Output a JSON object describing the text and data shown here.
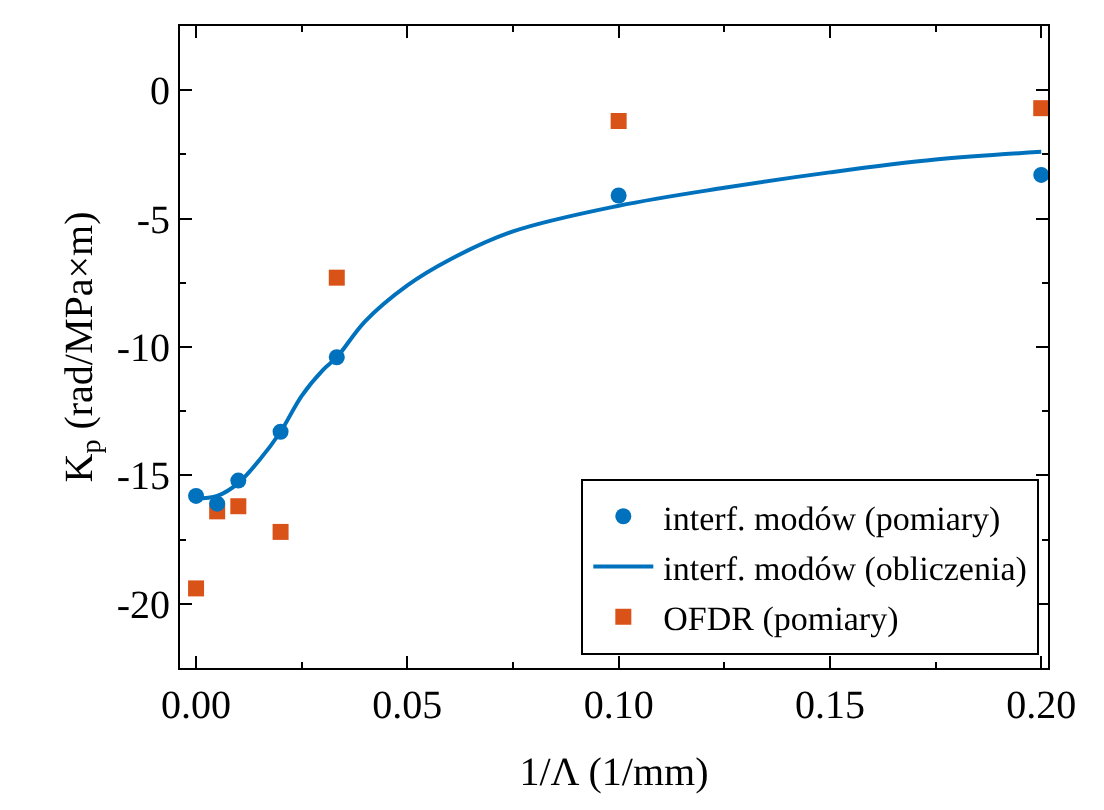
{
  "chart_data": {
    "type": "scatter",
    "xlabel": "1/Λ (1/mm)",
    "ylabel": "K$_{p}$ (rad/MPa×m)",
    "xlim": [
      -0.0038,
      0.2016
    ],
    "ylim": [
      -22.5,
      2.5
    ],
    "xticks": [
      {
        "value": 0,
        "label": "0.00"
      },
      {
        "value": 0.05,
        "label": "0.05"
      },
      {
        "value": 0.1,
        "label": "0.10"
      },
      {
        "value": 0.15,
        "label": "0.15"
      },
      {
        "value": 0.2,
        "label": "0.20"
      }
    ],
    "yticks": [
      -20,
      -15,
      -10,
      -5,
      0
    ],
    "legend": "bottom right",
    "series": [
      {
        "name": "interf. modów (pomiary)",
        "marker": "circle",
        "color": "#0072bd",
        "x": [
          0,
          0.005,
          0.01,
          0.02,
          0.0333,
          0.1,
          0.2
        ],
        "values": [
          -15.8,
          -16.1,
          -15.2,
          -13.3,
          -10.4,
          -4.1,
          -3.3
        ]
      },
      {
        "name": "interf. modów (obliczenia)",
        "type": "line",
        "line_style": "solid",
        "color": "#0072bd",
        "x": [
          0,
          0.005,
          0.01,
          0.015,
          0.02,
          0.025,
          0.03,
          0.0333,
          0.04,
          0.05,
          0.06,
          0.075,
          0.1,
          0.125,
          0.15,
          0.175,
          0.2
        ],
        "values": [
          -15.9,
          -15.8,
          -15.3,
          -14.4,
          -13.3,
          -11.9,
          -10.9,
          -10.4,
          -9.0,
          -7.6,
          -6.6,
          -5.5,
          -4.5,
          -3.8,
          -3.2,
          -2.7,
          -2.4
        ]
      },
      {
        "name": "OFDR (pomiary)",
        "marker": "square",
        "color": "#d95319",
        "x": [
          0,
          0.005,
          0.01,
          0.02,
          0.0333,
          0.1,
          0.2
        ],
        "values": [
          -19.4,
          -16.4,
          -16.2,
          -17.2,
          -7.3,
          -1.2,
          -0.7
        ]
      }
    ]
  }
}
